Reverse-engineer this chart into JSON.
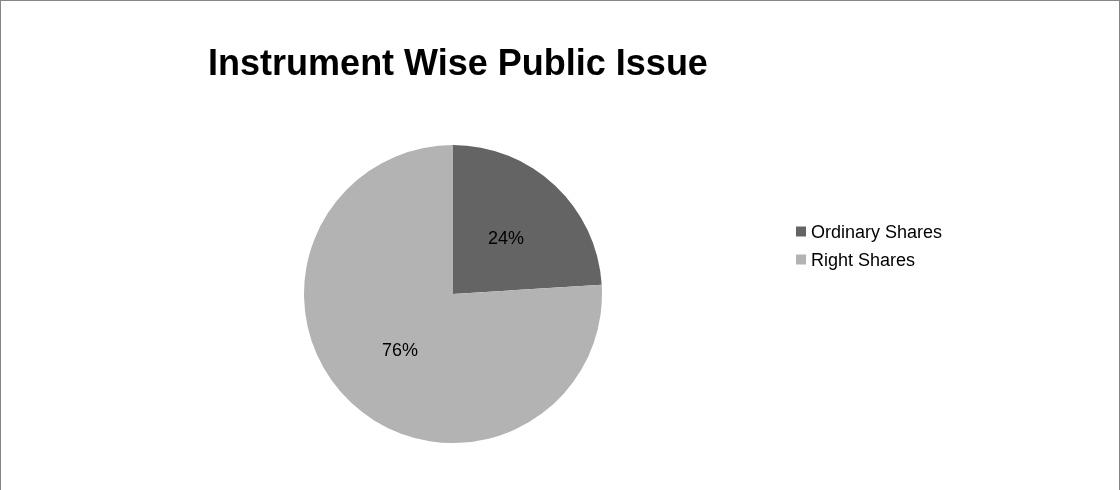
{
  "chart_data": {
    "type": "pie",
    "title": "Instrument Wise Public Issue",
    "categories": [
      "Ordinary Shares",
      "Right Shares"
    ],
    "values": [
      24,
      76
    ],
    "colors": [
      "#646464",
      "#b3b3b3"
    ],
    "value_labels": [
      "24%",
      "76%"
    ],
    "legend": "right"
  }
}
